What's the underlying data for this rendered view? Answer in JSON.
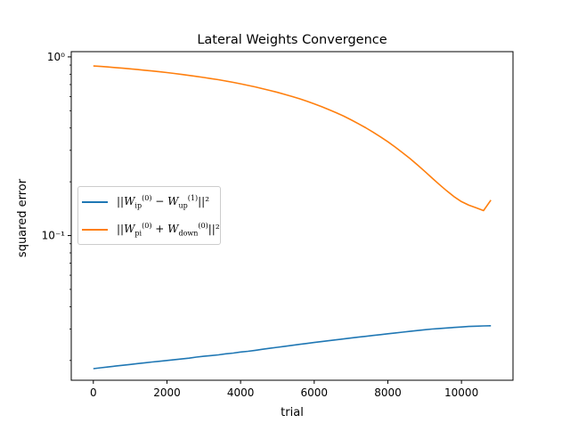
{
  "chart_data": {
    "type": "line",
    "title": "Lateral Weights Convergence",
    "xlabel": "trial",
    "ylabel": "squared error",
    "xlim": [
      -600,
      11400
    ],
    "ylim": [
      0.0155,
      1.07
    ],
    "yscale": "log",
    "grid": false,
    "legend_position": "center-left",
    "x_ticks": [
      0,
      2000,
      4000,
      6000,
      8000,
      10000
    ],
    "x_tick_labels": [
      "0",
      "2000",
      "4000",
      "6000",
      "8000",
      "10000"
    ],
    "y_major_ticks": [
      1,
      0.1
    ],
    "y_tick_labels": [
      "10⁰",
      "10⁻¹"
    ],
    "y_minor_ticks": [
      0.02,
      0.03,
      0.04,
      0.05,
      0.06,
      0.07,
      0.08,
      0.09,
      0.2,
      0.3,
      0.4,
      0.5,
      0.6,
      0.7,
      0.8,
      0.9
    ],
    "x": [
      0,
      200,
      400,
      600,
      800,
      1000,
      1200,
      1400,
      1600,
      1800,
      2000,
      2200,
      2400,
      2600,
      2800,
      3000,
      3200,
      3400,
      3600,
      3800,
      4000,
      4200,
      4400,
      4600,
      4800,
      5000,
      5200,
      5400,
      5600,
      5800,
      6000,
      6200,
      6400,
      6600,
      6800,
      7000,
      7200,
      7400,
      7600,
      7800,
      8000,
      8200,
      8400,
      8600,
      8800,
      9000,
      9200,
      9400,
      9600,
      9800,
      10000,
      10200,
      10400,
      10600,
      10800
    ],
    "series": [
      {
        "name": "||W_ip^(0) − W_up^(1)||²",
        "color": "#1f77b4",
        "values": [
          0.018,
          0.0182,
          0.0184,
          0.0186,
          0.0188,
          0.019,
          0.0192,
          0.0194,
          0.0196,
          0.0198,
          0.02,
          0.0202,
          0.0204,
          0.0206,
          0.0209,
          0.0211,
          0.0213,
          0.0215,
          0.0218,
          0.022,
          0.0223,
          0.0225,
          0.0228,
          0.0231,
          0.0234,
          0.0237,
          0.024,
          0.0243,
          0.0246,
          0.0249,
          0.0252,
          0.0255,
          0.0258,
          0.0261,
          0.0264,
          0.0267,
          0.027,
          0.0273,
          0.0276,
          0.0279,
          0.0282,
          0.0285,
          0.0288,
          0.0291,
          0.0294,
          0.0297,
          0.03,
          0.0302,
          0.0304,
          0.0306,
          0.0308,
          0.031,
          0.0311,
          0.0312,
          0.0313
        ]
      },
      {
        "name": "||W_pi^(0) + W_down^(0)||²",
        "color": "#ff7f0e",
        "values": [
          0.89,
          0.884,
          0.878,
          0.871,
          0.864,
          0.857,
          0.85,
          0.842,
          0.834,
          0.826,
          0.817,
          0.808,
          0.798,
          0.788,
          0.778,
          0.767,
          0.756,
          0.745,
          0.733,
          0.72,
          0.707,
          0.693,
          0.679,
          0.664,
          0.649,
          0.633,
          0.617,
          0.6,
          0.583,
          0.565,
          0.546,
          0.527,
          0.507,
          0.487,
          0.466,
          0.445,
          0.423,
          0.401,
          0.379,
          0.357,
          0.335,
          0.313,
          0.291,
          0.27,
          0.249,
          0.229,
          0.21,
          0.193,
          0.178,
          0.165,
          0.155,
          0.148,
          0.143,
          0.138,
          0.158
        ]
      }
    ]
  },
  "legend": {
    "items": [
      {
        "base": "||W",
        "sub": "ip",
        "sup": "(0)",
        "op": " − ",
        "base2": "W",
        "sub2": "up",
        "sup2": "(1)",
        "tail": "||²"
      },
      {
        "base": "||W",
        "sub": "pi",
        "sup": "(0)",
        "op": " + ",
        "base2": "W",
        "sub2": "down",
        "sup2": "(0)",
        "tail": "||²"
      }
    ]
  }
}
